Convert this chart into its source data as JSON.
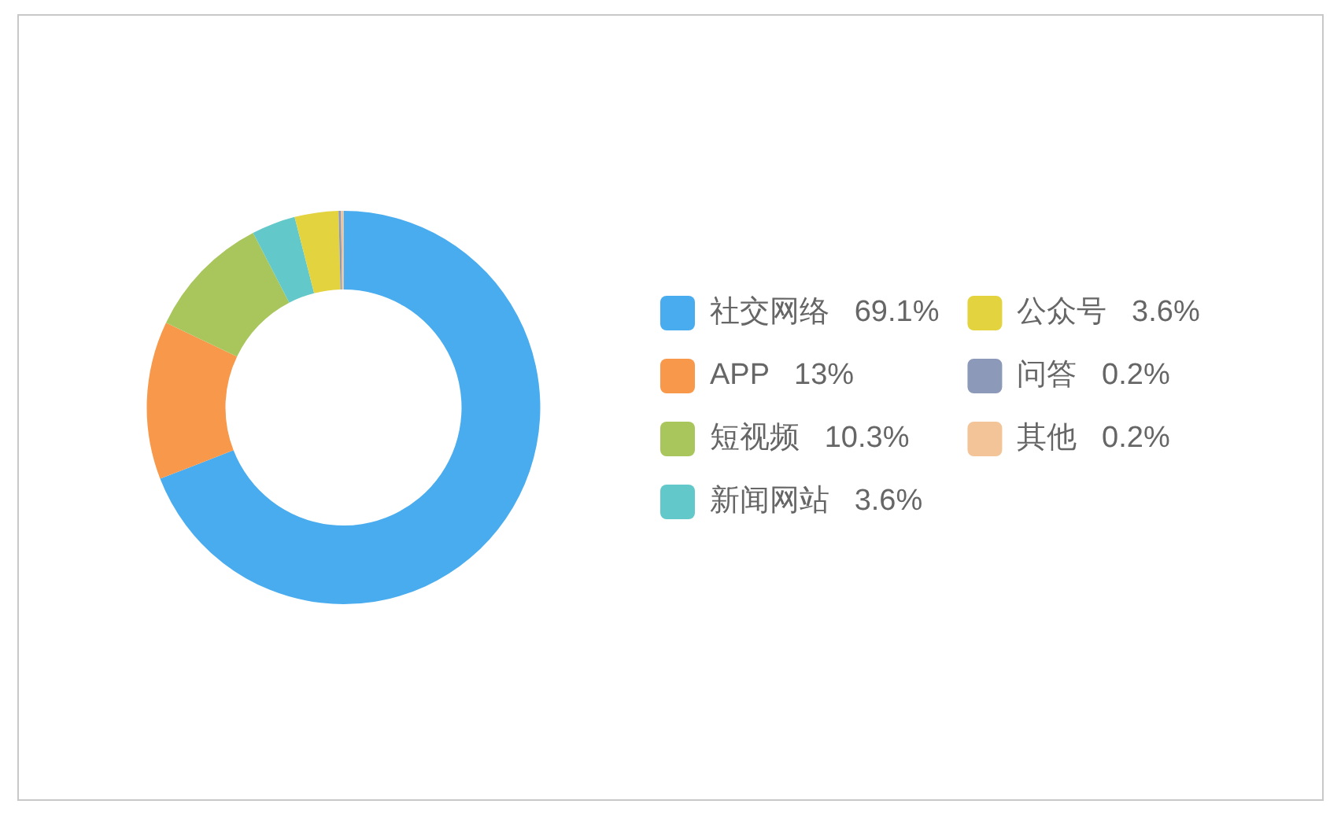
{
  "chart_data": {
    "type": "donut",
    "categories": [
      "社交网络",
      "APP",
      "短视频",
      "新闻网站",
      "公众号",
      "问答",
      "其他"
    ],
    "values": [
      69.1,
      13,
      10.3,
      3.6,
      3.6,
      0.2,
      0.2
    ],
    "colors": [
      "#48acef",
      "#f8984a",
      "#a8c65b",
      "#62c8c9",
      "#e3d33f",
      "#8c99b8",
      "#f3c497"
    ],
    "value_labels": [
      "69.1%",
      "13%",
      "10.3%",
      "3.6%",
      "3.6%",
      "0.2%",
      "0.2%"
    ],
    "legend": "right"
  }
}
